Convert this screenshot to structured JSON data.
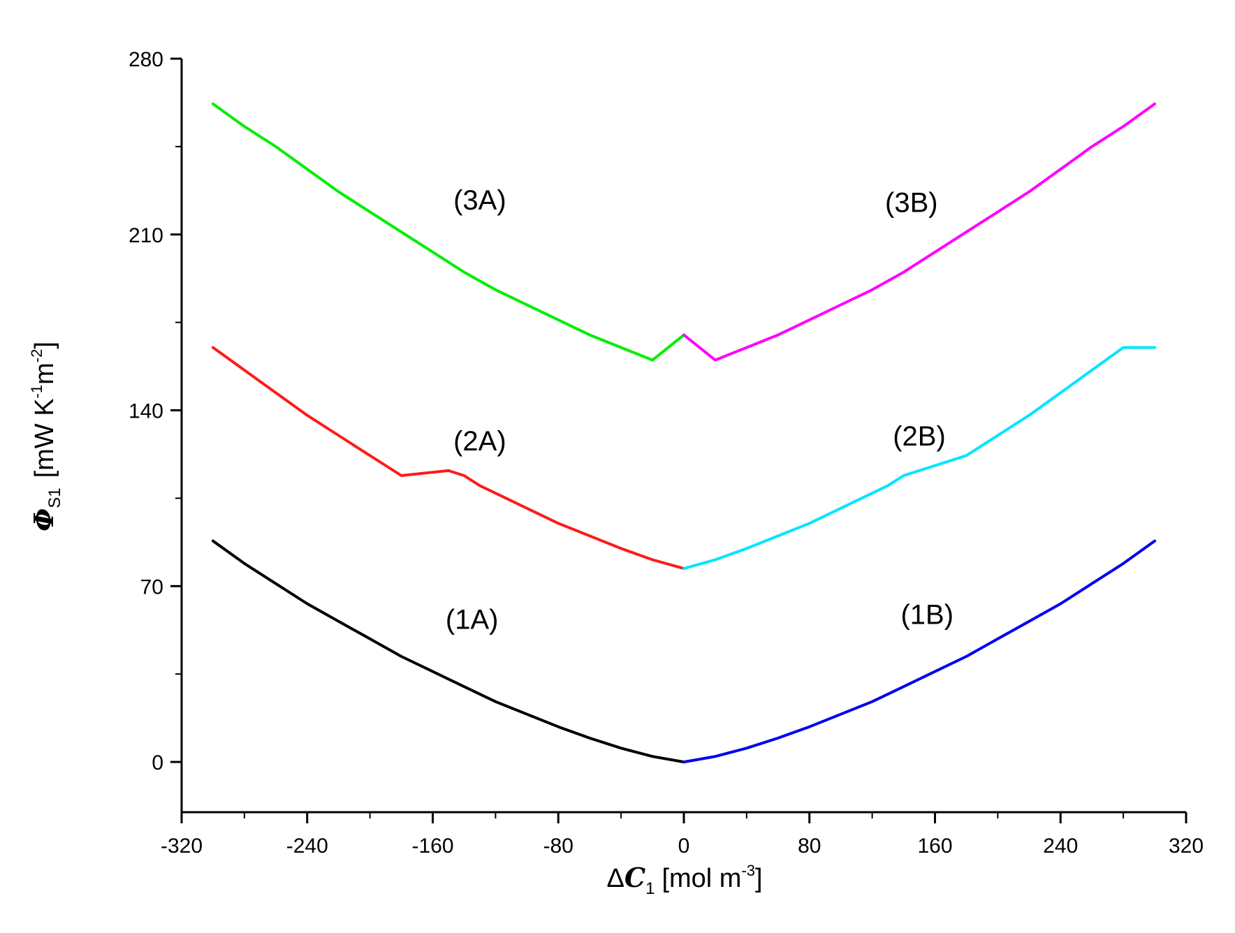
{
  "chart_data": {
    "type": "line",
    "title": "",
    "xlabel": {
      "symbol_delta": "Δ",
      "symbol_main": "C",
      "symbol_sub": "1",
      "unit_text": "[mol m",
      "unit_sup": "-3",
      "unit_close": "]"
    },
    "ylabel": {
      "symbol_main": "Φ",
      "symbol_sub": "S1",
      "unit_open": "[mW K",
      "unit_sup1": "-1",
      "unit_mid": "m",
      "unit_sup2": "-2",
      "unit_close": "]"
    },
    "xlim": [
      -320,
      320
    ],
    "ylim": [
      -20,
      280
    ],
    "x_ticks": [
      -320,
      -240,
      -160,
      -80,
      0,
      80,
      160,
      240,
      320
    ],
    "x_tick_labels": [
      "-320",
      "-240",
      "-160",
      "-80",
      "0",
      "80",
      "160",
      "240",
      "320"
    ],
    "y_ticks": [
      0,
      70,
      140,
      210,
      280
    ],
    "y_tick_labels": [
      "0",
      "70",
      "140",
      "210",
      "280"
    ],
    "x_minor_step": 40,
    "y_minor_step": 35,
    "grid": false,
    "series": [
      {
        "name": "(1A)",
        "color": "#000000",
        "label_pos": {
          "x": -135,
          "y": 53
        },
        "points": [
          [
            -300,
            88
          ],
          [
            -280,
            79
          ],
          [
            -260,
            71
          ],
          [
            -240,
            63
          ],
          [
            -220,
            56
          ],
          [
            -200,
            49
          ],
          [
            -180,
            42
          ],
          [
            -160,
            36
          ],
          [
            -140,
            30
          ],
          [
            -120,
            24
          ],
          [
            -100,
            19
          ],
          [
            -80,
            14
          ],
          [
            -60,
            9.5
          ],
          [
            -40,
            5.5
          ],
          [
            -20,
            2.2
          ],
          [
            0,
            0
          ]
        ]
      },
      {
        "name": "(1B)",
        "color": "#0000ee",
        "label_pos": {
          "x": 155,
          "y": 55
        },
        "points": [
          [
            0,
            0
          ],
          [
            20,
            2.2
          ],
          [
            40,
            5.5
          ],
          [
            60,
            9.5
          ],
          [
            80,
            14
          ],
          [
            100,
            19
          ],
          [
            120,
            24
          ],
          [
            140,
            30
          ],
          [
            160,
            36
          ],
          [
            180,
            42
          ],
          [
            200,
            49
          ],
          [
            220,
            56
          ],
          [
            240,
            63
          ],
          [
            260,
            71
          ],
          [
            280,
            79
          ],
          [
            300,
            88
          ]
        ]
      },
      {
        "name": "(2A)",
        "color": "#ff1a1a",
        "label_pos": {
          "x": -130,
          "y": 124
        },
        "points": [
          [
            -300,
            165
          ],
          [
            -280,
            156
          ],
          [
            -260,
            147
          ],
          [
            -240,
            138
          ],
          [
            -220,
            130
          ],
          [
            -200,
            122
          ],
          [
            -180,
            114
          ],
          [
            -150,
            116
          ],
          [
            -140,
            114
          ],
          [
            -130,
            110
          ],
          [
            -120,
            107
          ],
          [
            -100,
            101
          ],
          [
            -80,
            95
          ],
          [
            -60,
            90
          ],
          [
            -40,
            85
          ],
          [
            -20,
            80.5
          ],
          [
            0,
            77
          ]
        ]
      },
      {
        "name": "(2B)",
        "color": "#00e5ff",
        "label_pos": {
          "x": 150,
          "y": 126
        },
        "points": [
          [
            0,
            77
          ],
          [
            20,
            80.5
          ],
          [
            40,
            85
          ],
          [
            60,
            90
          ],
          [
            80,
            95
          ],
          [
            100,
            101
          ],
          [
            120,
            107
          ],
          [
            130,
            110
          ],
          [
            140,
            114
          ],
          [
            150,
            116
          ],
          [
            180,
            122
          ],
          [
            200,
            130
          ],
          [
            220,
            138
          ],
          [
            240,
            147
          ],
          [
            260,
            156
          ],
          [
            280,
            165
          ],
          [
            300,
            165
          ]
        ]
      },
      {
        "name": "(3A)",
        "color": "#00ee00",
        "label_pos": {
          "x": -130,
          "y": 220
        },
        "points": [
          [
            -300,
            262
          ],
          [
            -280,
            253
          ],
          [
            -260,
            245
          ],
          [
            -240,
            236
          ],
          [
            -220,
            227
          ],
          [
            -200,
            219
          ],
          [
            -180,
            211
          ],
          [
            -160,
            203
          ],
          [
            -140,
            195
          ],
          [
            -120,
            188
          ],
          [
            -100,
            182
          ],
          [
            -80,
            176
          ],
          [
            -60,
            170
          ],
          [
            -40,
            165
          ],
          [
            -20,
            160
          ],
          [
            0,
            170
          ]
        ]
      },
      {
        "name": "(3B)",
        "color": "#ff00ff",
        "label_pos": {
          "x": 145,
          "y": 219
        },
        "points": [
          [
            0,
            170
          ],
          [
            20,
            160
          ],
          [
            40,
            165
          ],
          [
            60,
            170
          ],
          [
            80,
            176
          ],
          [
            100,
            182
          ],
          [
            120,
            188
          ],
          [
            140,
            195
          ],
          [
            160,
            203
          ],
          [
            180,
            211
          ],
          [
            200,
            219
          ],
          [
            220,
            227
          ],
          [
            240,
            236
          ],
          [
            260,
            245
          ],
          [
            280,
            253
          ],
          [
            300,
            262
          ]
        ]
      }
    ]
  }
}
